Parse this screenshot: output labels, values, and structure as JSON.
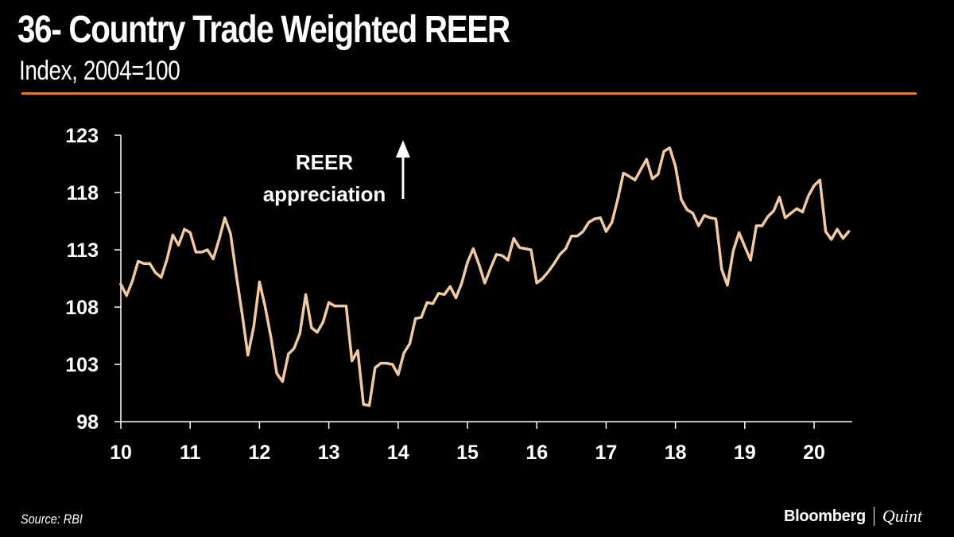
{
  "header": {
    "title": "36- Country Trade Weighted REER",
    "subtitle": "Index, 2004=100"
  },
  "footer": {
    "source": "Source: RBI",
    "brand_left": "Bloomberg",
    "brand_right": "Quint"
  },
  "colors": {
    "background": "#000000",
    "accent_rule": "#e8762b",
    "series_line": "#f2c9a0",
    "text": "#ffffff"
  },
  "chart_data": {
    "type": "line",
    "title": "36- Country Trade Weighted REER",
    "subtitle": "Index, 2004=100",
    "xlabel": "",
    "ylabel": "",
    "ylim": [
      98,
      123
    ],
    "xlim": [
      10,
      20.55
    ],
    "yticks": [
      98,
      103,
      108,
      113,
      118,
      123
    ],
    "xticks": [
      10,
      11,
      12,
      13,
      14,
      15,
      16,
      17,
      18,
      19,
      20
    ],
    "xtick_labels": [
      "10",
      "11",
      "12",
      "13",
      "14",
      "15",
      "16",
      "17",
      "18",
      "19",
      "20"
    ],
    "grid": false,
    "annotation": {
      "lines": [
        "REER",
        "appreciation"
      ],
      "x": 14.07,
      "y": 121.5,
      "arrow": "up"
    },
    "series": [
      {
        "name": "REER",
        "x": [
          10.0,
          10.083,
          10.167,
          10.25,
          10.333,
          10.417,
          10.5,
          10.583,
          10.667,
          10.75,
          10.833,
          10.917,
          11.0,
          11.083,
          11.167,
          11.25,
          11.333,
          11.417,
          11.5,
          11.583,
          11.667,
          11.75,
          11.833,
          11.917,
          12.0,
          12.083,
          12.167,
          12.25,
          12.333,
          12.417,
          12.5,
          12.583,
          12.667,
          12.75,
          12.833,
          12.917,
          13.0,
          13.083,
          13.167,
          13.25,
          13.333,
          13.417,
          13.5,
          13.583,
          13.667,
          13.75,
          13.833,
          13.917,
          14.0,
          14.083,
          14.167,
          14.25,
          14.333,
          14.417,
          14.5,
          14.583,
          14.667,
          14.75,
          14.833,
          14.917,
          15.0,
          15.083,
          15.167,
          15.25,
          15.333,
          15.417,
          15.5,
          15.583,
          15.667,
          15.75,
          15.833,
          15.917,
          16.0,
          16.083,
          16.167,
          16.25,
          16.333,
          16.417,
          16.5,
          16.583,
          16.667,
          16.75,
          16.833,
          16.917,
          17.0,
          17.083,
          17.167,
          17.25,
          17.333,
          17.417,
          17.5,
          17.583,
          17.667,
          17.75,
          17.833,
          17.917,
          18.0,
          18.083,
          18.167,
          18.25,
          18.333,
          18.417,
          18.5,
          18.583,
          18.667,
          18.75,
          18.833,
          18.917,
          19.0,
          19.083,
          19.167,
          19.25,
          19.333,
          19.417,
          19.5,
          19.583,
          19.667,
          19.75,
          19.833,
          19.917,
          20.0,
          20.083,
          20.167,
          20.25,
          20.333,
          20.417,
          20.5
        ],
        "values": [
          110.0,
          109.0,
          110.3,
          112.0,
          111.8,
          111.8,
          111.0,
          110.6,
          112.2,
          114.3,
          113.4,
          114.8,
          114.5,
          112.8,
          112.8,
          113.0,
          112.2,
          113.9,
          115.8,
          114.4,
          110.7,
          107.4,
          103.8,
          106.3,
          110.2,
          108.0,
          105.3,
          102.2,
          101.5,
          103.9,
          104.4,
          105.7,
          109.1,
          106.2,
          105.8,
          106.7,
          108.4,
          108.1,
          108.1,
          108.1,
          103.3,
          104.2,
          99.5,
          99.4,
          102.7,
          103.1,
          103.1,
          103.0,
          102.1,
          104.0,
          104.8,
          107.0,
          107.1,
          108.4,
          108.3,
          109.2,
          109.1,
          109.8,
          108.8,
          110.1,
          111.9,
          113.1,
          111.7,
          110.1,
          111.4,
          112.6,
          112.5,
          112.1,
          114.0,
          113.2,
          113.1,
          113.0,
          110.1,
          110.5,
          111.1,
          111.8,
          112.6,
          113.1,
          114.2,
          114.2,
          114.6,
          115.4,
          115.7,
          115.8,
          114.6,
          115.4,
          117.4,
          119.7,
          119.4,
          119.1,
          120.0,
          120.9,
          119.2,
          119.6,
          121.6,
          121.9,
          120.3,
          117.4,
          116.5,
          116.2,
          115.1,
          116.0,
          115.8,
          115.7,
          111.3,
          109.9,
          112.9,
          114.5,
          113.3,
          112.1,
          115.1,
          115.1,
          115.9,
          116.4,
          117.6,
          115.8,
          116.2,
          116.6,
          116.3,
          117.7,
          118.6,
          119.1,
          114.6,
          113.9,
          114.8,
          114.0,
          114.6
        ]
      }
    ]
  }
}
